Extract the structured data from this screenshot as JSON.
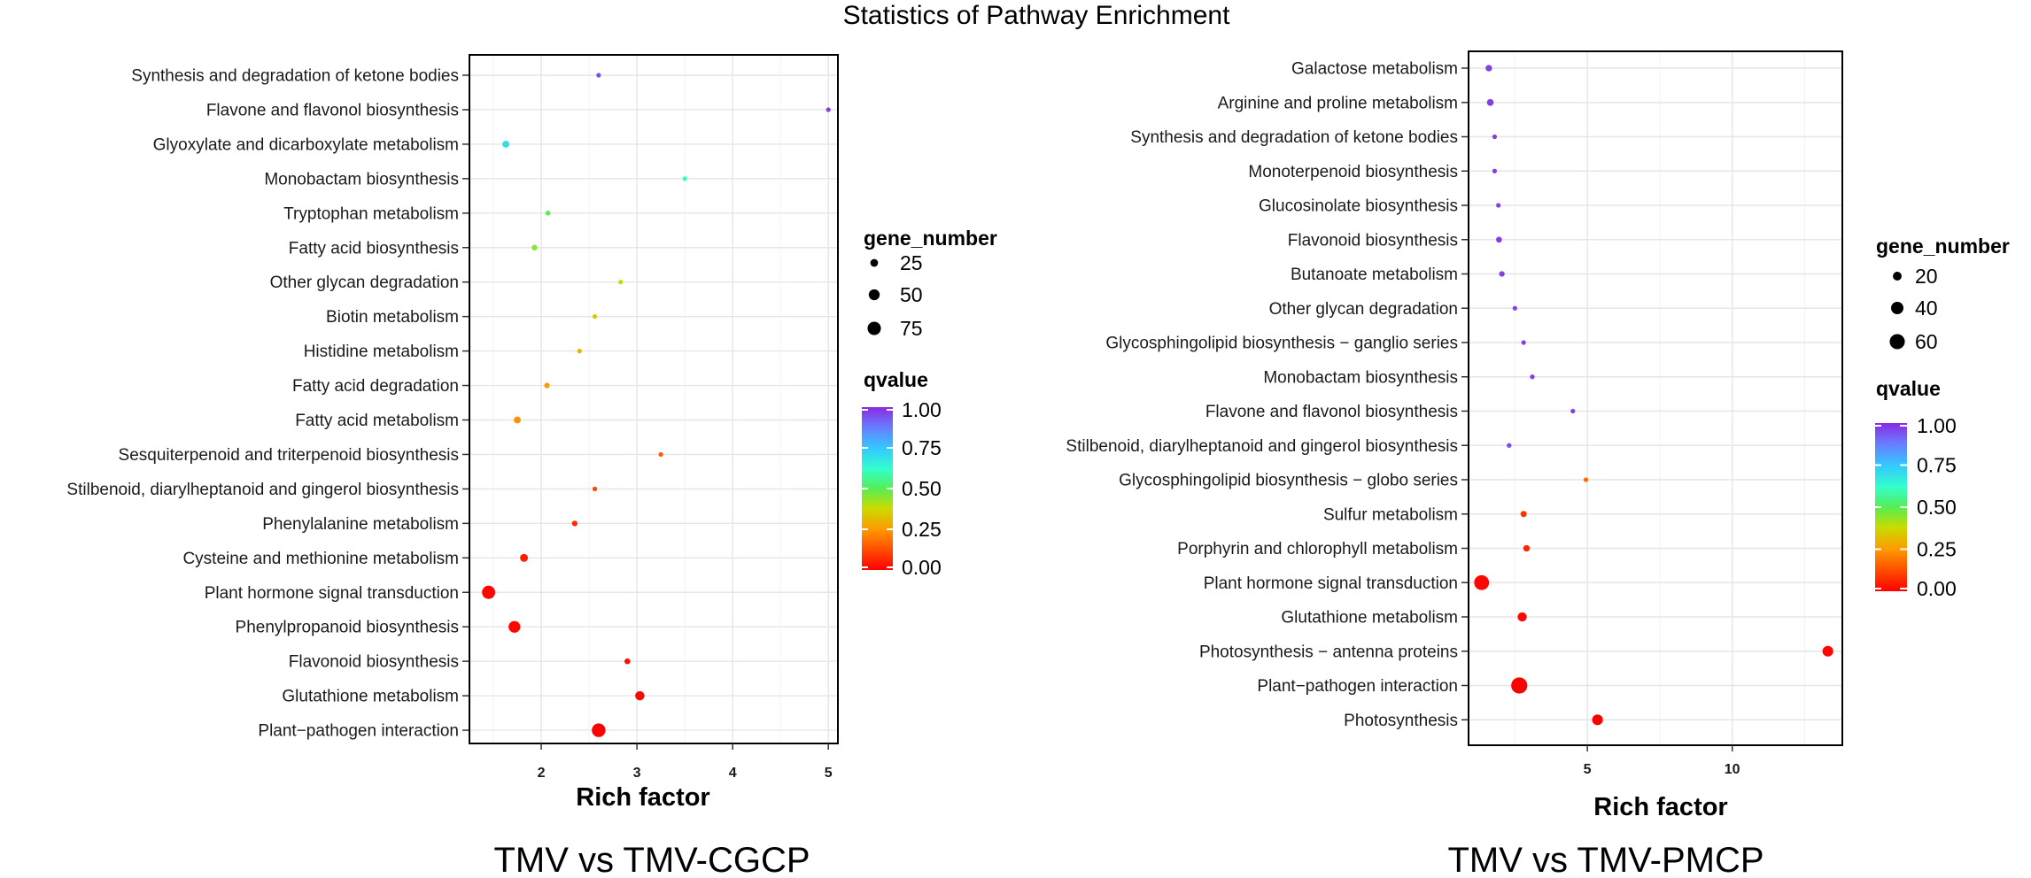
{
  "page_title": "Statistics of Pathway Enrichment",
  "colors": {
    "qvalue_scale": [
      "#ff0000",
      "#ff5a00",
      "#ff9a00",
      "#c8dc00",
      "#55ee55",
      "#33ffcc",
      "#33c8ff",
      "#6a7aff",
      "#8a2be2"
    ],
    "grid": "#ebebeb",
    "panel_border": "#000000"
  },
  "chart_data": [
    {
      "type": "scatter",
      "caption": "TMV vs TMV-CGCP",
      "xlabel": "Rich factor",
      "ylabel": "",
      "xlim": [
        1.25,
        5.1
      ],
      "xticks": [
        2,
        3,
        4,
        5
      ],
      "size_legend": {
        "title": "gene_number",
        "values": [
          25,
          50,
          75
        ]
      },
      "color_legend": {
        "title": "qvalue",
        "ticks": [
          "1.00",
          "0.75",
          "0.50",
          "0.25",
          "0.00"
        ],
        "range": [
          0,
          1
        ]
      },
      "points": [
        {
          "pathway": "Synthesis and degradation of ketone bodies",
          "rich_factor": 2.6,
          "gene_number": 5,
          "qvalue": 0.95
        },
        {
          "pathway": "Flavone and flavonol biosynthesis",
          "rich_factor": 5.0,
          "gene_number": 5,
          "qvalue": 0.97
        },
        {
          "pathway": "Glyoxylate and dicarboxylate metabolism",
          "rich_factor": 1.63,
          "gene_number": 20,
          "qvalue": 0.7
        },
        {
          "pathway": "Monobactam biosynthesis",
          "rich_factor": 3.5,
          "gene_number": 5,
          "qvalue": 0.62
        },
        {
          "pathway": "Tryptophan metabolism",
          "rich_factor": 2.07,
          "gene_number": 10,
          "qvalue": 0.5
        },
        {
          "pathway": "Fatty acid biosynthesis",
          "rich_factor": 1.93,
          "gene_number": 14,
          "qvalue": 0.45
        },
        {
          "pathway": "Other glycan degradation",
          "rich_factor": 2.83,
          "gene_number": 6,
          "qvalue": 0.38
        },
        {
          "pathway": "Biotin metabolism",
          "rich_factor": 2.56,
          "gene_number": 7,
          "qvalue": 0.34
        },
        {
          "pathway": "Histidine metabolism",
          "rich_factor": 2.4,
          "gene_number": 8,
          "qvalue": 0.3
        },
        {
          "pathway": "Fatty acid degradation",
          "rich_factor": 2.06,
          "gene_number": 13,
          "qvalue": 0.26
        },
        {
          "pathway": "Fatty acid metabolism",
          "rich_factor": 1.75,
          "gene_number": 20,
          "qvalue": 0.23
        },
        {
          "pathway": "Sesquiterpenoid and triterpenoid biosynthesis",
          "rich_factor": 3.25,
          "gene_number": 6,
          "qvalue": 0.12
        },
        {
          "pathway": "Stilbenoid, diarylheptanoid and gingerol biosynthesis",
          "rich_factor": 2.56,
          "gene_number": 9,
          "qvalue": 0.1
        },
        {
          "pathway": "Phenylalanine metabolism",
          "rich_factor": 2.35,
          "gene_number": 13,
          "qvalue": 0.06
        },
        {
          "pathway": "Cysteine and methionine metabolism",
          "rich_factor": 1.82,
          "gene_number": 26,
          "qvalue": 0.04
        },
        {
          "pathway": "Plant hormone signal transduction",
          "rich_factor": 1.45,
          "gene_number": 73,
          "qvalue": 0.01
        },
        {
          "pathway": "Phenylpropanoid biosynthesis",
          "rich_factor": 1.72,
          "gene_number": 58,
          "qvalue": 0.01
        },
        {
          "pathway": "Flavonoid biosynthesis",
          "rich_factor": 2.9,
          "gene_number": 14,
          "qvalue": 0.02
        },
        {
          "pathway": "Glutathione metabolism",
          "rich_factor": 3.03,
          "gene_number": 36,
          "qvalue": 0.01
        },
        {
          "pathway": "Plant−pathogen interaction",
          "rich_factor": 2.6,
          "gene_number": 78,
          "qvalue": 0.0
        }
      ]
    },
    {
      "type": "scatter",
      "caption": "TMV vs TMV-PMCP",
      "xlabel": "Rich factor",
      "ylabel": "",
      "xlim": [
        0.9,
        13.8
      ],
      "xticks": [
        5,
        10
      ],
      "size_legend": {
        "title": "gene_number",
        "values": [
          20,
          40,
          60
        ]
      },
      "color_legend": {
        "title": "qvalue",
        "ticks": [
          "1.00",
          "0.75",
          "0.50",
          "0.25",
          "0.00"
        ],
        "range": [
          0,
          1
        ]
      },
      "points": [
        {
          "pathway": "Galactose metabolism",
          "rich_factor": 1.6,
          "gene_number": 11,
          "qvalue": 0.97
        },
        {
          "pathway": "Arginine and proline metabolism",
          "rich_factor": 1.65,
          "gene_number": 12,
          "qvalue": 0.97
        },
        {
          "pathway": "Synthesis and degradation of ketone bodies",
          "rich_factor": 1.8,
          "gene_number": 4,
          "qvalue": 0.97
        },
        {
          "pathway": "Monoterpenoid biosynthesis",
          "rich_factor": 1.8,
          "gene_number": 4,
          "qvalue": 0.97
        },
        {
          "pathway": "Glucosinolate biosynthesis",
          "rich_factor": 1.93,
          "gene_number": 5,
          "qvalue": 0.97
        },
        {
          "pathway": "Flavonoid biosynthesis",
          "rich_factor": 1.95,
          "gene_number": 9,
          "qvalue": 0.97
        },
        {
          "pathway": "Butanoate metabolism",
          "rich_factor": 2.05,
          "gene_number": 8,
          "qvalue": 0.97
        },
        {
          "pathway": "Other glycan degradation",
          "rich_factor": 2.5,
          "gene_number": 5,
          "qvalue": 0.97
        },
        {
          "pathway": "Glycosphingolipid biosynthesis − ganglio series",
          "rich_factor": 2.8,
          "gene_number": 3,
          "qvalue": 0.97
        },
        {
          "pathway": "Monobactam biosynthesis",
          "rich_factor": 3.1,
          "gene_number": 4,
          "qvalue": 0.97
        },
        {
          "pathway": "Flavone and flavonol biosynthesis",
          "rich_factor": 4.5,
          "gene_number": 3,
          "qvalue": 0.97
        },
        {
          "pathway": "Stilbenoid, diarylheptanoid and gingerol biosynthesis",
          "rich_factor": 2.3,
          "gene_number": 6,
          "qvalue": 0.95
        },
        {
          "pathway": "Glycosphingolipid biosynthesis − globo series",
          "rich_factor": 4.95,
          "gene_number": 4,
          "qvalue": 0.15
        },
        {
          "pathway": "Sulfur metabolism",
          "rich_factor": 2.8,
          "gene_number": 10,
          "qvalue": 0.07
        },
        {
          "pathway": "Porphyrin and chlorophyll metabolism",
          "rich_factor": 2.9,
          "gene_number": 11,
          "qvalue": 0.05
        },
        {
          "pathway": "Plant hormone signal transduction",
          "rich_factor": 1.35,
          "gene_number": 58,
          "qvalue": 0.01
        },
        {
          "pathway": "Glutathione metabolism",
          "rich_factor": 2.75,
          "gene_number": 22,
          "qvalue": 0.01
        },
        {
          "pathway": "Photosynthesis − antenna proteins",
          "rich_factor": 13.3,
          "gene_number": 30,
          "qvalue": 0.01
        },
        {
          "pathway": "Plant−pathogen interaction",
          "rich_factor": 2.65,
          "gene_number": 68,
          "qvalue": 0.0
        },
        {
          "pathway": "Photosynthesis",
          "rich_factor": 5.35,
          "gene_number": 30,
          "qvalue": 0.0
        }
      ]
    }
  ]
}
